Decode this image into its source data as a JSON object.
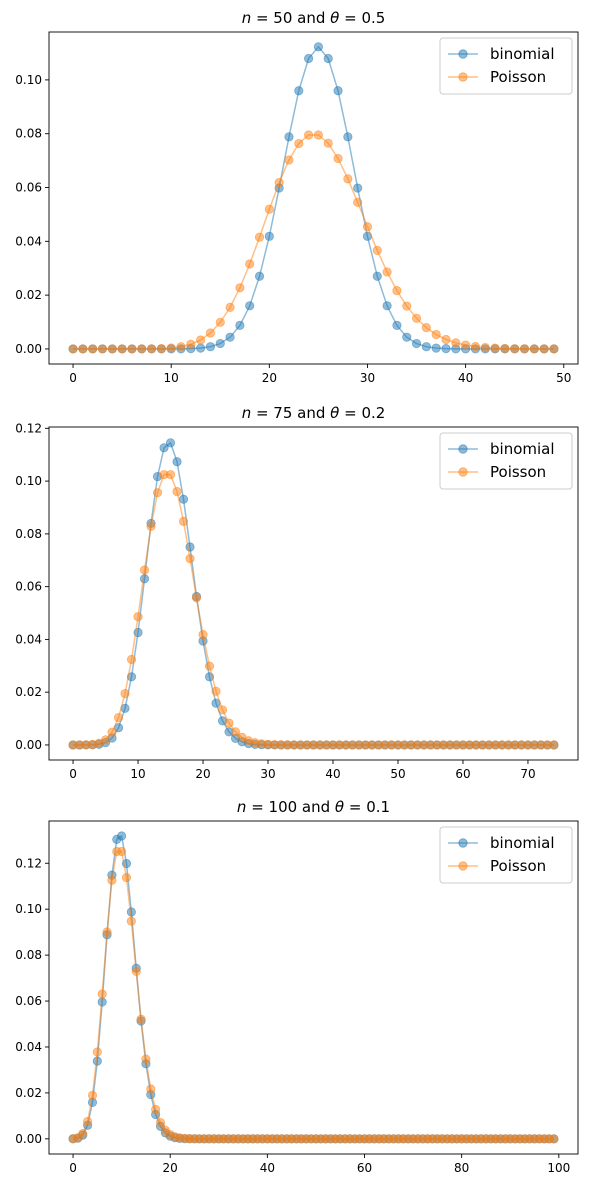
{
  "chart_data": [
    {
      "type": "line",
      "title": {
        "prefix": "n",
        "eq1": " = 50 and ",
        "theta": "θ",
        "eq2": " = 0.5"
      },
      "xticks": [
        0,
        10,
        20,
        30,
        40,
        50
      ],
      "yticks": [
        "0.00",
        "0.02",
        "0.04",
        "0.06",
        "0.08",
        "0.10"
      ],
      "xlim": [
        -2.45,
        51.45
      ],
      "ylim": [
        -0.0056,
        0.1178
      ],
      "legend_position": "upper right",
      "series": [
        {
          "name": "binomial",
          "color": "#1f77b4",
          "marker": "circle",
          "dist": "binomial",
          "n": 50,
          "p": 0.5,
          "x_start": 0,
          "x_end": 49
        },
        {
          "name": "Poisson",
          "color": "#ff7f0e",
          "marker": "circle",
          "dist": "poisson",
          "lambda": 25,
          "x_start": 0,
          "x_end": 49
        }
      ]
    },
    {
      "type": "line",
      "title": {
        "prefix": "n",
        "eq1": " = 75 and ",
        "theta": "θ",
        "eq2": " = 0.2"
      },
      "xticks": [
        0,
        10,
        20,
        30,
        40,
        50,
        60,
        70
      ],
      "yticks": [
        "0.00",
        "0.02",
        "0.04",
        "0.06",
        "0.08",
        "0.10",
        "0.12"
      ],
      "xlim": [
        -3.7,
        77.7
      ],
      "ylim": [
        -0.0057,
        0.1205
      ],
      "legend_position": "upper right",
      "series": [
        {
          "name": "binomial",
          "color": "#1f77b4",
          "marker": "circle",
          "dist": "binomial",
          "n": 75,
          "p": 0.2,
          "x_start": 0,
          "x_end": 74
        },
        {
          "name": "Poisson",
          "color": "#ff7f0e",
          "marker": "circle",
          "dist": "poisson",
          "lambda": 15,
          "x_start": 0,
          "x_end": 74
        }
      ]
    },
    {
      "type": "line",
      "title": {
        "prefix": "n",
        "eq1": " = 100 and ",
        "theta": "θ",
        "eq2": " = 0.1"
      },
      "xticks": [
        0,
        20,
        40,
        60,
        80,
        100
      ],
      "yticks": [
        "0.00",
        "0.02",
        "0.04",
        "0.06",
        "0.08",
        "0.10",
        "0.12"
      ],
      "xlim": [
        -4.95,
        103.95
      ],
      "ylim": [
        -0.0066,
        0.1384
      ],
      "legend_position": "upper right",
      "series": [
        {
          "name": "binomial",
          "color": "#1f77b4",
          "marker": "circle",
          "dist": "binomial",
          "n": 100,
          "p": 0.1,
          "x_start": 0,
          "x_end": 99
        },
        {
          "name": "Poisson",
          "color": "#ff7f0e",
          "marker": "circle",
          "dist": "poisson",
          "lambda": 10,
          "x_start": 0,
          "x_end": 99
        }
      ]
    }
  ]
}
